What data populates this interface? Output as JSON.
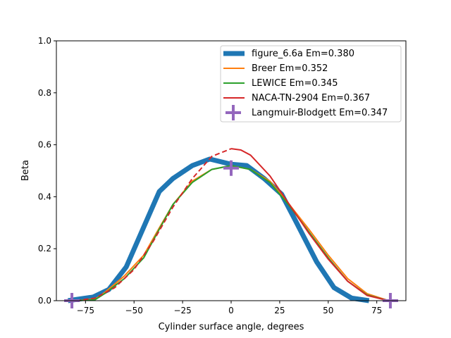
{
  "chart_data": {
    "type": "line",
    "xlabel": "Cylinder surface angle, degrees",
    "ylabel": "Beta",
    "xlim": [
      -90,
      90
    ],
    "ylim": [
      0,
      1.0
    ],
    "xticks": [
      -75,
      -50,
      -25,
      0,
      25,
      50,
      75
    ],
    "xtick_labels": [
      "−75",
      "−50",
      "−25",
      "0",
      "25",
      "50",
      "75"
    ],
    "yticks": [
      0,
      0.2,
      0.4,
      0.6,
      0.8,
      1.0
    ],
    "ytick_labels": [
      "0.0",
      "0.2",
      "0.4",
      "0.6",
      "0.8",
      "1.0"
    ],
    "grid": false,
    "legend_placement": "top-right",
    "series": [
      {
        "name": "figure_6.6a Em=0.380",
        "color": "#1f77b4",
        "style": "thick",
        "x": [
          -84,
          -71,
          -63,
          -54,
          -37,
          -30,
          -20,
          -11,
          0,
          8,
          17,
          26,
          33,
          44,
          53,
          62,
          71
        ],
        "y": [
          0,
          0.014,
          0.043,
          0.13,
          0.42,
          0.47,
          0.52,
          0.545,
          0.525,
          0.52,
          0.47,
          0.41,
          0.31,
          0.15,
          0.05,
          0.01,
          0
        ]
      },
      {
        "name": "Breer Em=0.352",
        "color": "#ff7f0e",
        "style": "solid",
        "x": [
          -80,
          -70,
          -65,
          -55,
          -45,
          -37,
          -30,
          -20,
          -10,
          0,
          10,
          20,
          30,
          40,
          50,
          60,
          70,
          80,
          85
        ],
        "y": [
          0,
          0.006,
          0.032,
          0.095,
          0.175,
          0.28,
          0.37,
          0.46,
          0.505,
          0.52,
          0.505,
          0.46,
          0.37,
          0.275,
          0.175,
          0.085,
          0.027,
          0.003,
          0
        ]
      },
      {
        "name": "LEWICE Em=0.345",
        "color": "#2ca02c",
        "style": "solid",
        "x": [
          -80,
          -70,
          -65,
          -55,
          -45,
          -37,
          -30,
          -20,
          -10,
          0,
          10,
          20,
          30,
          40,
          50,
          60,
          70,
          80,
          85
        ],
        "y": [
          0,
          0.004,
          0.028,
          0.085,
          0.165,
          0.275,
          0.37,
          0.455,
          0.505,
          0.52,
          0.505,
          0.455,
          0.365,
          0.265,
          0.165,
          0.075,
          0.022,
          0.002,
          0
        ]
      },
      {
        "name": "NACA-TN-2904 Em=0.367",
        "color": "#d62728",
        "style": "dashed-left-solid-right",
        "x": [
          -80,
          -70,
          -60,
          -50,
          -40,
          -30,
          -20,
          -10,
          0,
          5,
          10,
          20,
          30,
          40,
          50,
          60,
          70,
          80
        ],
        "y": [
          0,
          0.01,
          0.05,
          0.12,
          0.23,
          0.36,
          0.47,
          0.555,
          0.585,
          0.58,
          0.56,
          0.48,
          0.37,
          0.26,
          0.16,
          0.075,
          0.02,
          0.002
        ]
      },
      {
        "name": "Langmuir-Blodgett Em=0.347",
        "color": "#9467bd",
        "style": "plus-markers",
        "x": [
          -82,
          0,
          82
        ],
        "y": [
          0,
          0.51,
          0
        ]
      }
    ]
  }
}
